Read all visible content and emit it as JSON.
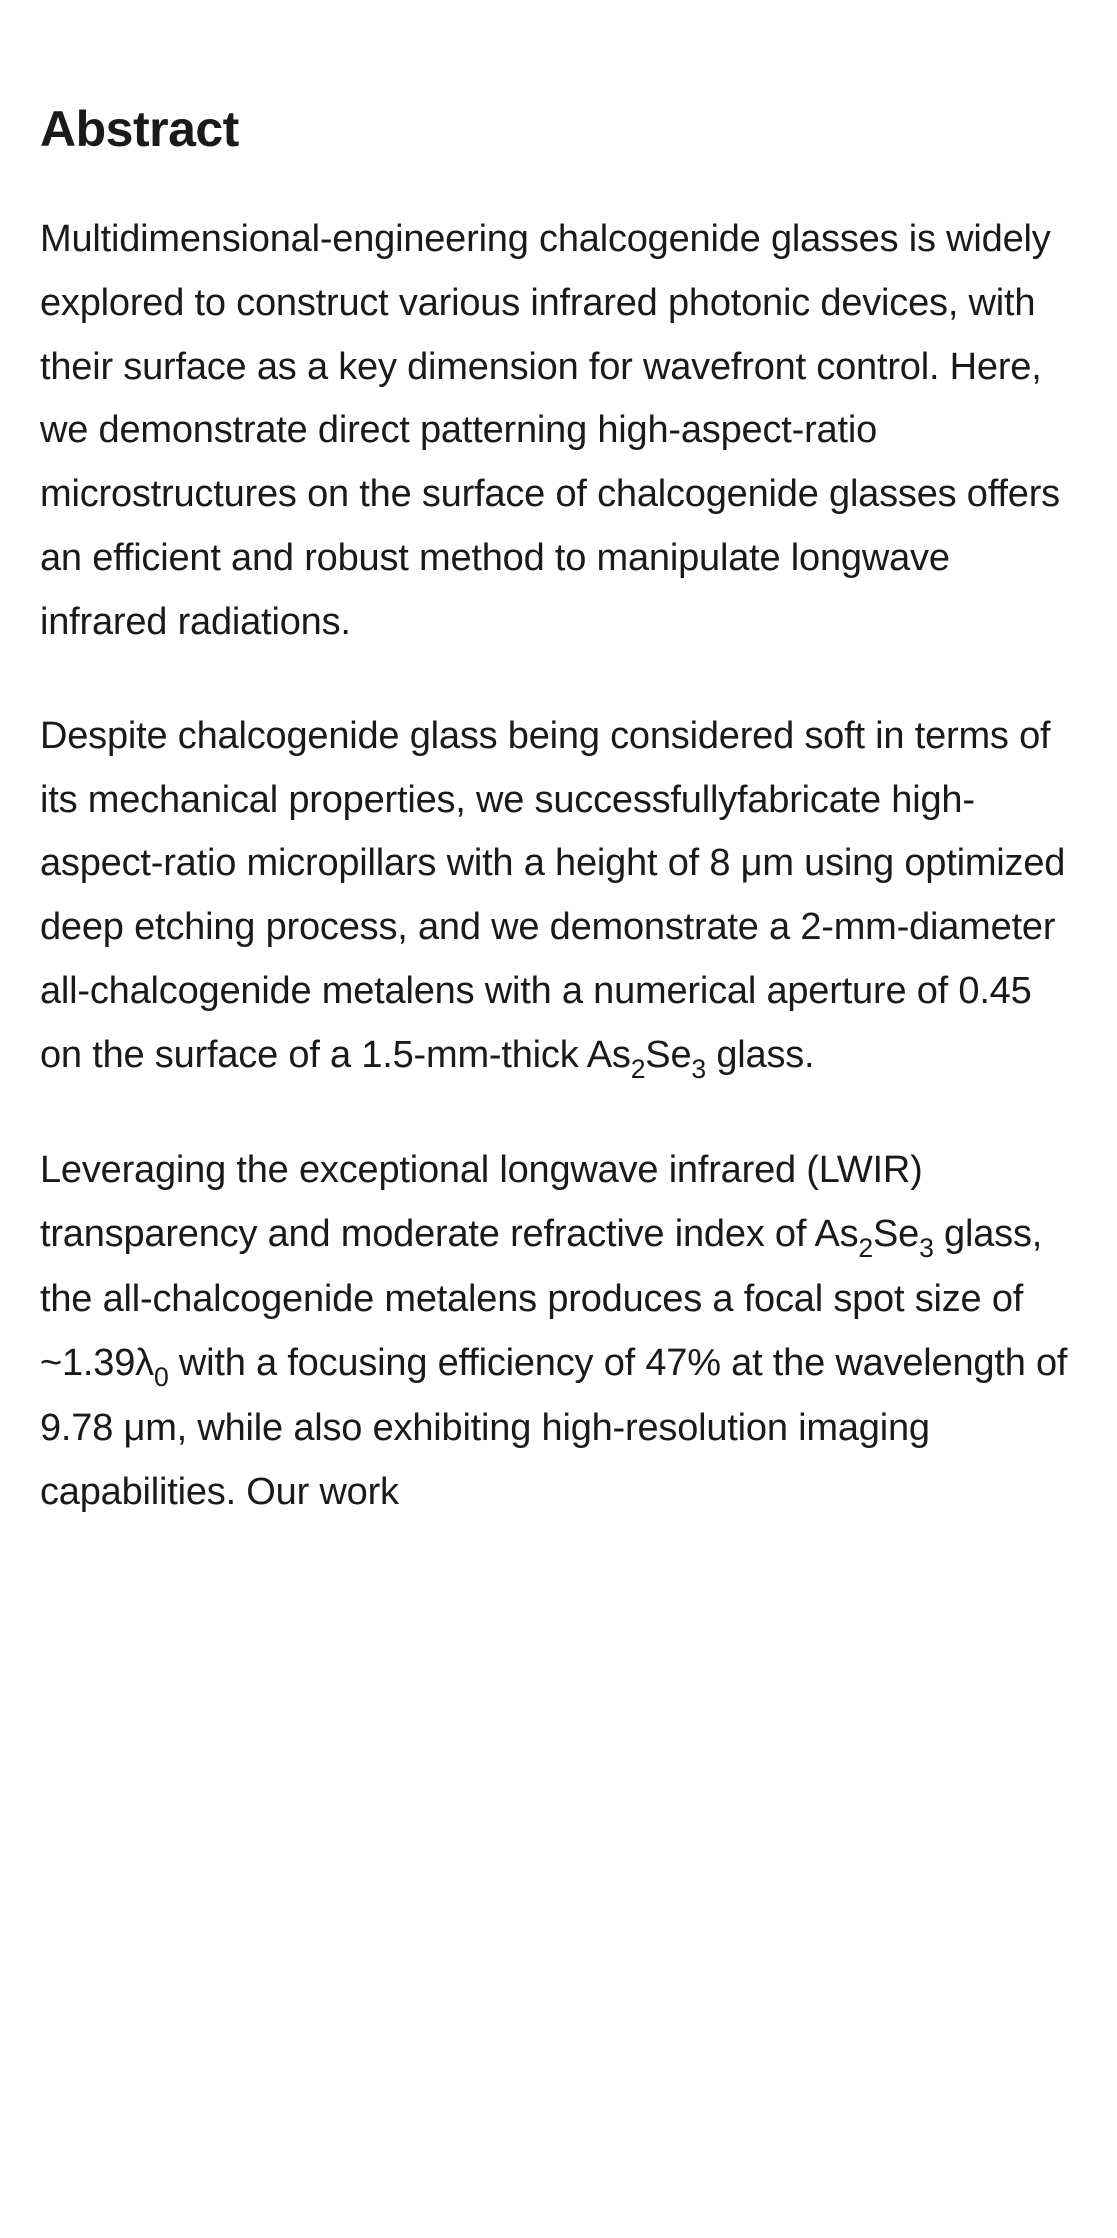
{
  "heading": "Abstract",
  "paragraphs": {
    "p1": "Multidimensional-engineering chalcogenide glasses is widely explored to construct various infrared photonic devices, with their surface as a key dimension for wavefront control. Here, we demonstrate direct patterning high-aspect-ratio microstructures on the surface of chalcogenide glasses offers an efficient and robust method to manipulate longwave infrared radiations.",
    "p2_part1": "Despite chalcogenide glass being considered soft in terms of its mechanical properties, we successfullyfabricate high-aspect-ratio micropillars with a height of 8 μm using optimized deep etching process, and we demonstrate a 2-mm-diameter all-chalcogenide metalens with a numerical aperture of 0.45 on the surface of a 1.5-mm-thick As",
    "p2_sub1": "2",
    "p2_part2": "Se",
    "p2_sub2": "3",
    "p2_part3": " glass.",
    "p3_part1": "Leveraging the exceptional longwave infrared (LWIR) transparency and moderate refractive index of As",
    "p3_sub1": "2",
    "p3_part2": "Se",
    "p3_sub2": "3",
    "p3_part3": " glass, the all-chalcogenide metalens produces a focal spot size of ~1.39λ",
    "p3_sub3": "0",
    "p3_part4": " with a focusing efficiency of 47% at the wavelength of 9.78 μm, while also exhibiting high-resolution imaging capabilities. Our work"
  },
  "styles": {
    "background_color": "#ffffff",
    "text_color": "#1a1a1a",
    "heading_fontsize": 50,
    "body_fontsize": 38,
    "line_height": 1.68
  }
}
